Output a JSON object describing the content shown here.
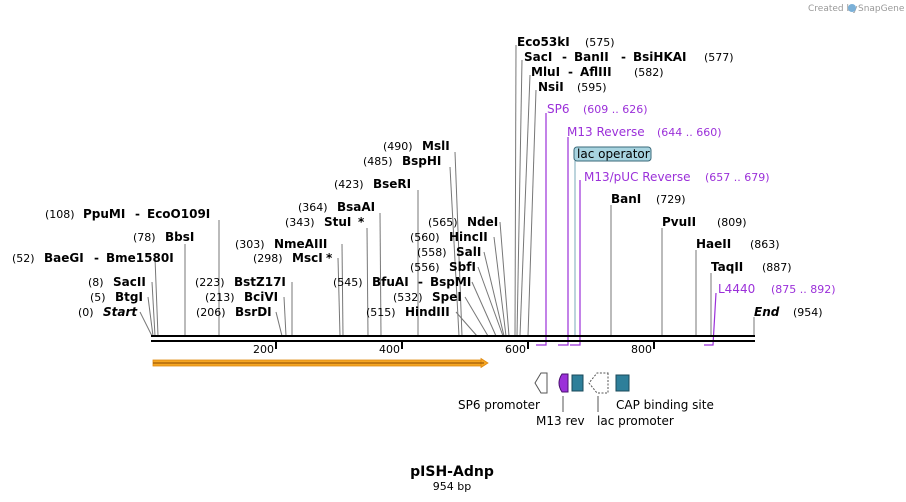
{
  "credit": {
    "text": "Created by",
    "brand": "SnapGene"
  },
  "title": "pISH-Adnp",
  "subtitle": "954 bp",
  "axis_ticks": [
    "200",
    "400",
    "600",
    "800"
  ],
  "sites": {
    "start": {
      "pos": "(0)",
      "name": "Start"
    },
    "end": {
      "pos": "(954)",
      "name": "End"
    },
    "btgi": {
      "pos": "(5)",
      "name": "BtgI"
    },
    "sacii": {
      "pos": "(8)",
      "name": "SacII"
    },
    "baegi": {
      "pos": "(52)",
      "name": "BaeGI",
      "name2": "Bme1580I"
    },
    "bbsi": {
      "pos": "(78)",
      "name": "BbsI"
    },
    "ppumi": {
      "pos": "(108)",
      "name": "PpuMI",
      "name2": "EcoO109I"
    },
    "bsrdi": {
      "pos": "(206)",
      "name": "BsrDI"
    },
    "bcivi": {
      "pos": "(213)",
      "name": "BciVI"
    },
    "bstz17i": {
      "pos": "(223)",
      "name": "BstZ17I"
    },
    "msci": {
      "pos": "(298)",
      "name": "MscI",
      "mark": "*"
    },
    "nmeaiii": {
      "pos": "(303)",
      "name": "NmeAIII"
    },
    "stui": {
      "pos": "(343)",
      "name": "StuI",
      "mark": "*"
    },
    "bsaai": {
      "pos": "(364)",
      "name": "BsaAI"
    },
    "bsseri": {
      "pos": "(423)",
      "name": "BseRI"
    },
    "bsphi": {
      "pos": "(485)",
      "name": "BspHI"
    },
    "msli": {
      "pos": "(490)",
      "name": "MslI"
    },
    "hindiii": {
      "pos": "(515)",
      "name": "HindIII"
    },
    "spei": {
      "pos": "(532)",
      "name": "SpeI"
    },
    "bfuai": {
      "pos": "(545)",
      "name": "BfuAI",
      "name2": "BspMI"
    },
    "sbfi": {
      "pos": "(556)",
      "name": "SbfI"
    },
    "sali": {
      "pos": "(558)",
      "name": "SalI"
    },
    "hincii": {
      "pos": "(560)",
      "name": "HincII"
    },
    "ndei": {
      "pos": "(565)",
      "name": "NdeI"
    },
    "eco53ki": {
      "name": "Eco53kI",
      "pos": "(575)"
    },
    "saci": {
      "name": "SacI",
      "name2": "BanII",
      "name3": "BsiHKAI",
      "pos": "(577)"
    },
    "mlui": {
      "name": "MluI",
      "name2": "AflIII",
      "pos": "(582)"
    },
    "nsii": {
      "name": "NsiI",
      "pos": "(595)"
    },
    "bani": {
      "name": "BanI",
      "pos": "(729)"
    },
    "pvuii": {
      "name": "PvuII",
      "pos": "(809)"
    },
    "haeii": {
      "name": "HaeII",
      "pos": "(863)"
    },
    "taqii": {
      "name": "TaqII",
      "pos": "(887)"
    }
  },
  "features": {
    "sp6": {
      "name": "SP6",
      "range": "(609 .. 626)"
    },
    "m13rev": {
      "name": "M13 Reverse",
      "range": "(644 .. 660)"
    },
    "lacop": {
      "name": "lac operator"
    },
    "m13puc": {
      "name": "M13/pUC Reverse",
      "range": "(657 .. 679)"
    },
    "l4440": {
      "name": "L4440",
      "range": "(875 .. 892)"
    }
  },
  "bottom_labels": {
    "sp6_promoter": "SP6 promoter",
    "m13_rev": "M13 rev",
    "lac_promoter": "lac promoter",
    "cap_site": "CAP binding site"
  },
  "colors": {
    "feature_purple": "#9b30d9",
    "orf_orange": "#f5a623",
    "lac_operator_blue": "#a8d4e0",
    "cap_teal": "#2e7f9a"
  }
}
